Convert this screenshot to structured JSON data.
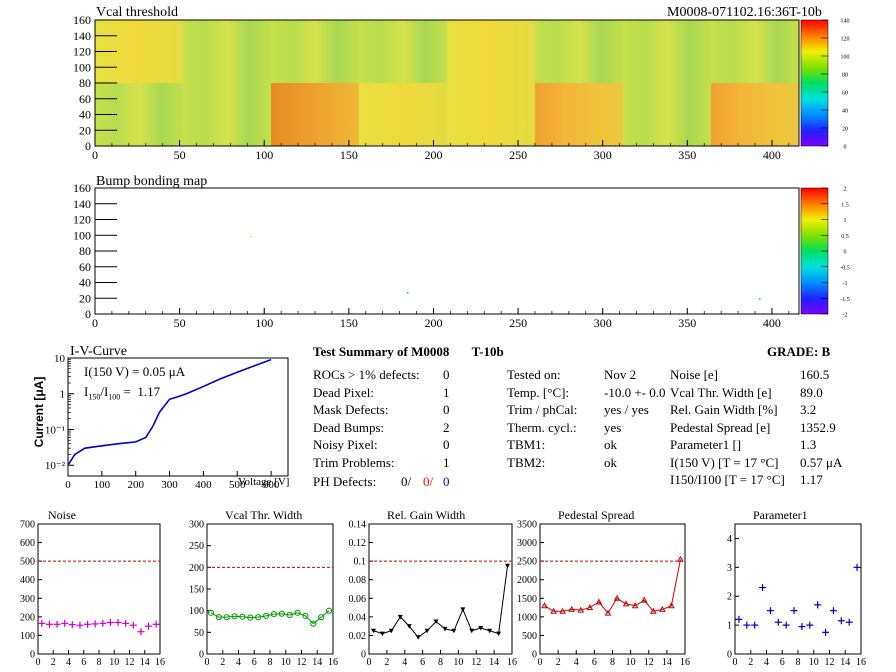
{
  "header": {
    "vcal_title": "Vcal threshold",
    "module_id": "M0008-071102.16:36T-10b",
    "bump_title": "Bump bonding map"
  },
  "maps": {
    "vcal": {
      "xticks": [
        "0",
        "50",
        "100",
        "150",
        "200",
        "250",
        "300",
        "350",
        "400"
      ],
      "yticks": [
        "0",
        "20",
        "40",
        "60",
        "80",
        "100",
        "120",
        "140",
        "160"
      ],
      "palette_ticks": [
        "0",
        "20",
        "40",
        "60",
        "80",
        "100",
        "120",
        "140"
      ],
      "xlim": [
        0,
        416
      ],
      "ylim": [
        0,
        160
      ]
    },
    "bump": {
      "xticks": [
        "0",
        "50",
        "100",
        "150",
        "200",
        "250",
        "300",
        "350",
        "400"
      ],
      "yticks": [
        "0",
        "20",
        "40",
        "60",
        "80",
        "100",
        "120",
        "140",
        "160"
      ],
      "palette_ticks": [
        "-2",
        "-1.5",
        "-1",
        "-0.5",
        "0",
        "0.5",
        "1",
        "1.5",
        "2"
      ],
      "xlim": [
        0,
        416
      ],
      "ylim": [
        0,
        160
      ]
    }
  },
  "iv": {
    "title": "I-V-Curve",
    "ylabel": "Current [μA]",
    "xlabel": "Voltage [V]",
    "current_line": "I(150 V) = 0.05 μA",
    "ratio_label": "I150/I100 =  1.17",
    "xticks": [
      "0",
      "100",
      "200",
      "300",
      "400",
      "500",
      "600"
    ],
    "yticks": [
      "10⁻²",
      "10⁻¹",
      "1",
      "10"
    ]
  },
  "summary": {
    "title": "Test Summary of M0008",
    "sub": "T-10b",
    "grade_label": "GRADE:  B",
    "left": [
      {
        "label": "ROCs > 1% defects:",
        "value": "0"
      },
      {
        "label": "Dead Pixel:",
        "value": "1"
      },
      {
        "label": "Mask Defects:",
        "value": "0"
      },
      {
        "label": "Dead Bumps:",
        "value": "2"
      },
      {
        "label": "Noisy Pixel:",
        "value": "0"
      },
      {
        "label": "Trim Problems:",
        "value": "1"
      }
    ],
    "ph_label": "PH Defects:",
    "ph_values": [
      "0/",
      "0/",
      "0"
    ],
    "ph_colors": [
      "#000000",
      "#ff0000",
      "#0000ff"
    ],
    "middle": [
      {
        "label": "Tested on:",
        "value": "Nov 2"
      },
      {
        "label": "Temp. [°C]:",
        "value": "-10.0 +- 0.0"
      },
      {
        "label": "Trim / phCal:",
        "value": "yes / yes"
      },
      {
        "label": "Therm. cycl.:",
        "value": "yes"
      },
      {
        "label": "TBM1:",
        "value": "ok"
      },
      {
        "label": "TBM2:",
        "value": "ok"
      }
    ],
    "right": [
      {
        "label": "Noise [e]",
        "value": "160.5"
      },
      {
        "label": "Vcal Thr. Width [e]",
        "value": "89.0"
      },
      {
        "label": "Rel. Gain Width [%]",
        "value": "3.2"
      },
      {
        "label": "Pedestal Spread [e]",
        "value": "1352.9"
      },
      {
        "label": "Parameter1 []",
        "value": "1.3"
      },
      {
        "label": "I(150 V) [T = 17 °C]",
        "value": "0.57 μA"
      },
      {
        "label": "I150/I100  [T = 17 °C]",
        "value": "1.17"
      }
    ]
  },
  "chart_data": [
    {
      "type": "line",
      "title": "I-V-Curve",
      "xlabel": "Voltage [V]",
      "ylabel": "Current [μA]",
      "yscale": "log",
      "xlim": [
        0,
        650
      ],
      "ylim": [
        0.005,
        10
      ],
      "x": [
        0,
        20,
        50,
        100,
        150,
        200,
        230,
        250,
        270,
        300,
        320,
        350,
        400,
        450,
        500,
        550,
        600
      ],
      "y": [
        0.01,
        0.02,
        0.03,
        0.035,
        0.04,
        0.045,
        0.06,
        0.12,
        0.3,
        0.7,
        0.8,
        1.0,
        1.6,
        2.6,
        4.0,
        6.0,
        9.0
      ],
      "color": "#0000cc"
    },
    {
      "type": "scatter",
      "title": "Noise",
      "xlim": [
        0,
        16
      ],
      "ylim": [
        0,
        700
      ],
      "xticks": [
        "0",
        "2",
        "4",
        "6",
        "8",
        "10",
        "12",
        "14",
        "16"
      ],
      "yticks": [
        "0",
        "100",
        "200",
        "300",
        "400",
        "500",
        "600",
        "700"
      ],
      "threshold": 500,
      "x": [
        0,
        1,
        2,
        3,
        4,
        5,
        6,
        7,
        8,
        9,
        10,
        11,
        12,
        13,
        14,
        15
      ],
      "values": [
        165,
        160,
        160,
        165,
        158,
        155,
        160,
        162,
        165,
        170,
        170,
        165,
        155,
        120,
        150,
        160
      ],
      "color": "#cc00cc",
      "marker": "plus"
    },
    {
      "type": "line",
      "title": "Vcal Thr. Width",
      "xlim": [
        0,
        16
      ],
      "ylim": [
        0,
        300
      ],
      "xticks": [
        "0",
        "2",
        "4",
        "6",
        "8",
        "10",
        "12",
        "14",
        "16"
      ],
      "yticks": [
        "0",
        "50",
        "100",
        "150",
        "200",
        "250",
        "300"
      ],
      "threshold": 200,
      "x": [
        0,
        1,
        2,
        3,
        4,
        5,
        6,
        7,
        8,
        9,
        10,
        11,
        12,
        13,
        14,
        15
      ],
      "values": [
        95,
        85,
        85,
        87,
        86,
        84,
        85,
        88,
        92,
        93,
        90,
        95,
        88,
        70,
        85,
        100
      ],
      "color": "#009900",
      "marker": "circle"
    },
    {
      "type": "line",
      "title": "Rel. Gain Width",
      "xlim": [
        0,
        16
      ],
      "ylim": [
        0,
        0.14
      ],
      "xticks": [
        "0",
        "2",
        "4",
        "6",
        "8",
        "10",
        "12",
        "14",
        "16"
      ],
      "yticks": [
        "0",
        "0.02",
        "0.04",
        "0.06",
        "0.08",
        "0.1",
        "0.12",
        "0.14"
      ],
      "threshold": 0.1,
      "x": [
        0,
        1,
        2,
        3,
        4,
        5,
        6,
        7,
        8,
        9,
        10,
        11,
        12,
        13,
        14,
        15
      ],
      "values": [
        0.025,
        0.022,
        0.025,
        0.04,
        0.03,
        0.018,
        0.025,
        0.035,
        0.027,
        0.025,
        0.048,
        0.025,
        0.028,
        0.025,
        0.022,
        0.095
      ],
      "color": "#000000",
      "marker": "triangle-down"
    },
    {
      "type": "line",
      "title": "Pedestal Spread",
      "xlim": [
        0,
        16
      ],
      "ylim": [
        0,
        3500
      ],
      "xticks": [
        "0",
        "2",
        "4",
        "6",
        "8",
        "10",
        "12",
        "14",
        "16"
      ],
      "yticks": [
        "0",
        "500",
        "1000",
        "1500",
        "2000",
        "2500",
        "3000",
        "3500"
      ],
      "threshold": 2500,
      "x": [
        0,
        1,
        2,
        3,
        4,
        5,
        6,
        7,
        8,
        9,
        10,
        11,
        12,
        13,
        14,
        15
      ],
      "values": [
        1300,
        1150,
        1150,
        1200,
        1180,
        1250,
        1400,
        1100,
        1500,
        1350,
        1300,
        1450,
        1150,
        1200,
        1300,
        2550
      ],
      "color": "#cc0000",
      "marker": "triangle-up"
    },
    {
      "type": "scatter",
      "title": "Parameter1",
      "xlim": [
        0,
        16
      ],
      "ylim": [
        0,
        4.5
      ],
      "xticks": [
        "0",
        "2",
        "4",
        "6",
        "8",
        "10",
        "12",
        "14",
        "16"
      ],
      "yticks": [
        "0",
        "1",
        "2",
        "3",
        "4"
      ],
      "x": [
        0,
        1,
        2,
        3,
        4,
        5,
        6,
        7,
        8,
        9,
        10,
        11,
        12,
        13,
        14,
        15
      ],
      "values": [
        1.2,
        1.0,
        1.0,
        2.3,
        1.5,
        1.1,
        1.0,
        1.5,
        0.95,
        1.0,
        1.7,
        0.75,
        1.5,
        1.15,
        1.1,
        3.0
      ],
      "color": "#0000cc",
      "marker": "plus"
    }
  ]
}
